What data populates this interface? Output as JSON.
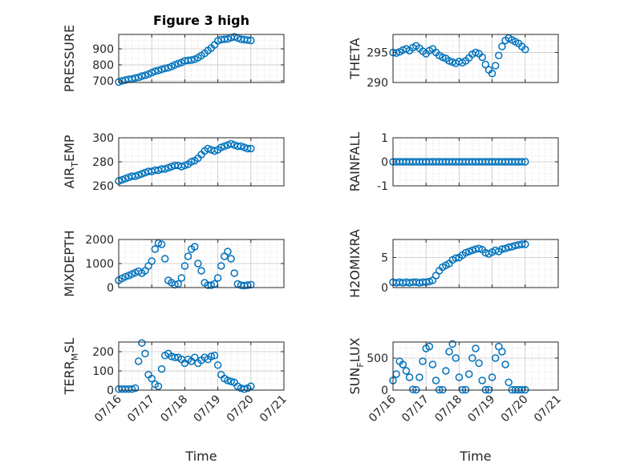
{
  "figure": {
    "title": "Figure 3 high",
    "marker_color": "#0072BD"
  },
  "chart_data": [
    {
      "type": "scatter",
      "ylabel": "PRESSURE",
      "ylim": [
        690,
        990
      ],
      "yticks": [
        700,
        800,
        900
      ],
      "grid": true,
      "x_unit": "day of July",
      "xlim": [
        16,
        21
      ],
      "x": [
        16.0,
        16.1,
        16.2,
        16.3,
        16.4,
        16.5,
        16.6,
        16.7,
        16.8,
        16.9,
        17.0,
        17.1,
        17.2,
        17.3,
        17.4,
        17.5,
        17.6,
        17.7,
        17.8,
        17.9,
        18.0,
        18.1,
        18.2,
        18.3,
        18.4,
        18.5,
        18.6,
        18.7,
        18.8,
        18.9,
        19.0,
        19.1,
        19.2,
        19.3,
        19.4,
        19.5,
        19.6,
        19.7,
        19.8,
        19.9,
        20.0
      ],
      "y": [
        693,
        700,
        705,
        710,
        712,
        718,
        722,
        730,
        735,
        742,
        752,
        760,
        765,
        772,
        778,
        782,
        790,
        800,
        808,
        815,
        825,
        828,
        830,
        835,
        845,
        858,
        872,
        890,
        905,
        925,
        950,
        958,
        960,
        962,
        970,
        975,
        968,
        960,
        958,
        955,
        952
      ]
    },
    {
      "type": "scatter",
      "ylabel": "THETA",
      "ylim": [
        290,
        298
      ],
      "yticks": [
        290,
        295
      ],
      "grid": true,
      "x_unit": "day of July",
      "xlim": [
        16,
        21
      ],
      "x": [
        16.0,
        16.1,
        16.2,
        16.3,
        16.4,
        16.5,
        16.6,
        16.7,
        16.8,
        16.9,
        17.0,
        17.1,
        17.2,
        17.3,
        17.4,
        17.5,
        17.6,
        17.7,
        17.8,
        17.9,
        18.0,
        18.1,
        18.2,
        18.3,
        18.4,
        18.5,
        18.6,
        18.7,
        18.8,
        18.9,
        19.0,
        19.1,
        19.2,
        19.3,
        19.4,
        19.5,
        19.6,
        19.7,
        19.8,
        19.9,
        20.0
      ],
      "y": [
        295.0,
        294.9,
        295.1,
        295.4,
        295.6,
        295.3,
        295.8,
        296.1,
        295.7,
        295.2,
        294.8,
        295.3,
        295.6,
        295.0,
        294.5,
        294.2,
        294.0,
        293.6,
        293.4,
        293.2,
        293.5,
        293.3,
        293.6,
        294.1,
        294.7,
        295.0,
        294.8,
        294.2,
        293.0,
        292.1,
        291.5,
        292.8,
        294.5,
        296.0,
        297.0,
        297.4,
        297.1,
        296.8,
        296.5,
        296.0,
        295.5
      ]
    },
    {
      "type": "scatter",
      "ylabel": "AIR_TEMP",
      "ylim": [
        260,
        300
      ],
      "yticks": [
        260,
        280,
        300
      ],
      "grid": true,
      "x_unit": "day of July",
      "xlim": [
        16,
        21
      ],
      "x": [
        16.0,
        16.1,
        16.2,
        16.3,
        16.4,
        16.5,
        16.6,
        16.7,
        16.8,
        16.9,
        17.0,
        17.1,
        17.2,
        17.3,
        17.4,
        17.5,
        17.6,
        17.7,
        17.8,
        17.9,
        18.0,
        18.1,
        18.2,
        18.3,
        18.4,
        18.5,
        18.6,
        18.7,
        18.8,
        18.9,
        19.0,
        19.1,
        19.2,
        19.3,
        19.4,
        19.5,
        19.6,
        19.7,
        19.8,
        19.9,
        20.0
      ],
      "y": [
        264,
        265,
        266,
        267,
        268,
        268,
        269,
        270,
        271,
        272,
        272,
        273,
        273,
        274,
        274,
        275,
        276,
        277,
        277,
        276,
        277,
        278,
        280,
        281,
        283,
        286,
        289,
        291,
        290,
        289,
        290,
        292,
        293,
        294,
        295,
        294,
        293,
        293,
        292,
        291,
        291
      ]
    },
    {
      "type": "scatter",
      "ylabel": "RAINFALL",
      "ylim": [
        -1,
        1
      ],
      "yticks": [
        -1,
        0,
        1
      ],
      "grid": true,
      "x_unit": "day of July",
      "xlim": [
        16,
        21
      ],
      "x": [
        16.0,
        16.1,
        16.2,
        16.3,
        16.4,
        16.5,
        16.6,
        16.7,
        16.8,
        16.9,
        17.0,
        17.1,
        17.2,
        17.3,
        17.4,
        17.5,
        17.6,
        17.7,
        17.8,
        17.9,
        18.0,
        18.1,
        18.2,
        18.3,
        18.4,
        18.5,
        18.6,
        18.7,
        18.8,
        18.9,
        19.0,
        19.1,
        19.2,
        19.3,
        19.4,
        19.5,
        19.6,
        19.7,
        19.8,
        19.9,
        20.0
      ],
      "y": [
        0,
        0,
        0,
        0,
        0,
        0,
        0,
        0,
        0,
        0,
        0,
        0,
        0,
        0,
        0,
        0,
        0,
        0,
        0,
        0,
        0,
        0,
        0,
        0,
        0,
        0,
        0,
        0,
        0,
        0,
        0,
        0,
        0,
        0,
        0,
        0,
        0,
        0,
        0,
        0,
        0
      ]
    },
    {
      "type": "scatter",
      "ylabel": "MIXDEPTH",
      "ylim": [
        0,
        2000
      ],
      "yticks": [
        0,
        1000,
        2000
      ],
      "grid": true,
      "x_unit": "day of July",
      "xlim": [
        16,
        21
      ],
      "x": [
        16.0,
        16.1,
        16.2,
        16.3,
        16.4,
        16.5,
        16.6,
        16.7,
        16.8,
        16.9,
        17.0,
        17.1,
        17.2,
        17.3,
        17.4,
        17.5,
        17.6,
        17.7,
        17.8,
        17.9,
        18.0,
        18.1,
        18.2,
        18.3,
        18.4,
        18.5,
        18.6,
        18.7,
        18.8,
        18.9,
        19.0,
        19.1,
        19.2,
        19.3,
        19.4,
        19.5,
        19.6,
        19.7,
        19.8,
        19.9,
        20.0
      ],
      "y": [
        300,
        380,
        450,
        500,
        560,
        620,
        680,
        600,
        700,
        900,
        1100,
        1600,
        1850,
        1800,
        1200,
        300,
        200,
        120,
        150,
        400,
        900,
        1300,
        1600,
        1700,
        1000,
        700,
        200,
        100,
        100,
        150,
        400,
        900,
        1300,
        1500,
        1200,
        600,
        150,
        100,
        80,
        100,
        120
      ]
    },
    {
      "type": "scatter",
      "ylabel": "H2OMIXRA",
      "ylim": [
        0,
        8
      ],
      "yticks": [
        0,
        5
      ],
      "grid": true,
      "x_unit": "day of July",
      "xlim": [
        16,
        21
      ],
      "x": [
        16.0,
        16.1,
        16.2,
        16.3,
        16.4,
        16.5,
        16.6,
        16.7,
        16.8,
        16.9,
        17.0,
        17.1,
        17.2,
        17.3,
        17.4,
        17.5,
        17.6,
        17.7,
        17.8,
        17.9,
        18.0,
        18.1,
        18.2,
        18.3,
        18.4,
        18.5,
        18.6,
        18.7,
        18.8,
        18.9,
        19.0,
        19.1,
        19.2,
        19.3,
        19.4,
        19.5,
        19.6,
        19.7,
        19.8,
        19.9,
        20.0
      ],
      "y": [
        0.9,
        0.8,
        0.9,
        0.8,
        0.9,
        0.8,
        0.9,
        0.9,
        0.8,
        0.9,
        0.9,
        1.0,
        1.2,
        2.0,
        2.8,
        3.4,
        3.7,
        4.0,
        4.6,
        4.9,
        5.0,
        5.4,
        5.8,
        6.0,
        6.2,
        6.4,
        6.5,
        6.3,
        5.8,
        5.6,
        5.9,
        6.2,
        6.0,
        6.4,
        6.5,
        6.7,
        6.8,
        7.0,
        7.1,
        7.2,
        7.2
      ]
    },
    {
      "type": "scatter",
      "ylabel": "TERR_MSL",
      "ylim": [
        0,
        250
      ],
      "yticks": [
        0,
        100,
        200
      ],
      "grid": true,
      "x_unit": "day of July",
      "xlim": [
        16,
        21
      ],
      "x": [
        16.0,
        16.1,
        16.2,
        16.3,
        16.4,
        16.5,
        16.6,
        16.7,
        16.8,
        16.9,
        17.0,
        17.1,
        17.2,
        17.3,
        17.4,
        17.5,
        17.6,
        17.7,
        17.8,
        17.9,
        18.0,
        18.1,
        18.2,
        18.3,
        18.4,
        18.5,
        18.6,
        18.7,
        18.8,
        18.9,
        19.0,
        19.1,
        19.2,
        19.3,
        19.4,
        19.5,
        19.6,
        19.7,
        19.8,
        19.9,
        20.0
      ],
      "y": [
        5,
        5,
        5,
        5,
        5,
        10,
        150,
        245,
        190,
        80,
        60,
        30,
        20,
        110,
        180,
        190,
        175,
        170,
        170,
        160,
        140,
        160,
        150,
        170,
        140,
        155,
        170,
        160,
        175,
        180,
        130,
        80,
        60,
        50,
        45,
        40,
        20,
        10,
        5,
        10,
        20
      ]
    },
    {
      "type": "scatter",
      "ylabel": "SUN_FLUX",
      "ylim": [
        0,
        750
      ],
      "yticks": [
        0,
        500
      ],
      "grid": true,
      "x_unit": "day of July",
      "xlim": [
        16,
        21
      ],
      "x": [
        16.0,
        16.1,
        16.2,
        16.3,
        16.4,
        16.5,
        16.6,
        16.7,
        16.8,
        16.9,
        17.0,
        17.1,
        17.2,
        17.3,
        17.4,
        17.5,
        17.6,
        17.7,
        17.8,
        17.9,
        18.0,
        18.1,
        18.2,
        18.3,
        18.4,
        18.5,
        18.6,
        18.7,
        18.8,
        18.9,
        19.0,
        19.1,
        19.2,
        19.3,
        19.4,
        19.5,
        19.6,
        19.7,
        19.8,
        19.9,
        20.0
      ],
      "y": [
        150,
        250,
        450,
        400,
        300,
        200,
        10,
        5,
        200,
        450,
        650,
        680,
        400,
        150,
        5,
        5,
        300,
        600,
        720,
        500,
        200,
        5,
        5,
        250,
        500,
        650,
        420,
        150,
        5,
        5,
        200,
        500,
        680,
        600,
        400,
        120,
        5,
        5,
        5,
        5,
        5
      ]
    }
  ],
  "x_axis": {
    "tick_values": [
      16,
      17,
      18,
      19,
      20,
      21
    ],
    "tick_labels": [
      "07/16",
      "07/17",
      "07/18",
      "07/19",
      "07/20",
      "07/21"
    ],
    "label": "Time"
  },
  "ylabel_parts": [
    {
      "main": "PRESSURE",
      "sub": ""
    },
    {
      "main": "THETA",
      "sub": ""
    },
    {
      "pre": "AIR",
      "sub": "T",
      "post": "EMP"
    },
    {
      "main": "RAINFALL",
      "sub": ""
    },
    {
      "main": "MIXDEPTH",
      "sub": ""
    },
    {
      "main": "H2OMIXRA",
      "sub": ""
    },
    {
      "pre": "TERR",
      "sub": "M",
      "post": "SL"
    },
    {
      "pre": "SUN",
      "sub": "F",
      "post": "LUX"
    }
  ]
}
